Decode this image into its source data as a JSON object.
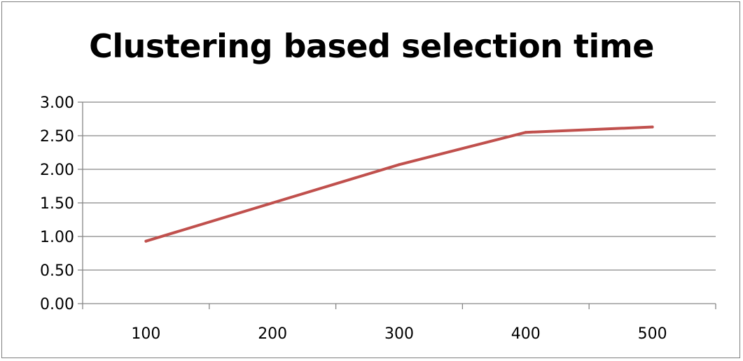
{
  "chart_data": {
    "type": "line",
    "title": "Clustering based selection time",
    "xlabel": "",
    "ylabel": "",
    "categories": [
      "100",
      "200",
      "300",
      "400",
      "500"
    ],
    "series": [
      {
        "values": [
          0.93,
          1.5,
          2.07,
          2.55,
          2.63
        ],
        "color": "#c0504d"
      }
    ],
    "ylim": [
      0,
      3
    ],
    "y_ticks": [
      "0.00",
      "0.50",
      "1.00",
      "1.50",
      "2.00",
      "2.50",
      "3.00"
    ],
    "grid": true,
    "legend": "none"
  }
}
